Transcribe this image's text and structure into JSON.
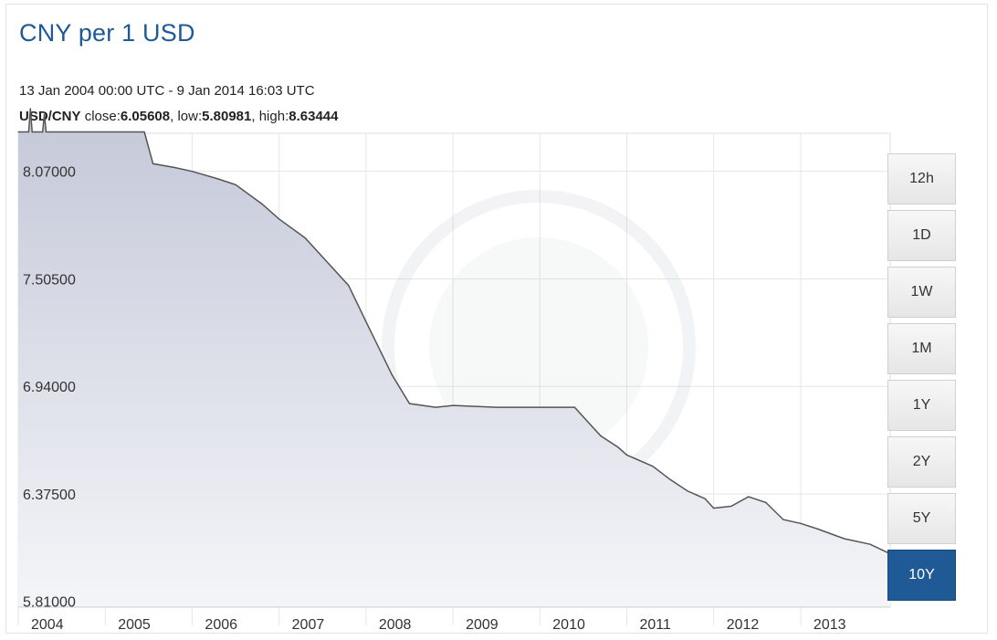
{
  "header": {
    "title": "CNY per 1 USD",
    "range_text": "13 Jan 2004 00:00 UTC - 9 Jan 2014 16:03 UTC",
    "pair": "USD/CNY",
    "close_label": "close:",
    "close_value": "6.05608",
    "low_label": "low:",
    "low_value": "5.80981",
    "high_label": "high:",
    "high_value": "8.63444"
  },
  "period_buttons": [
    {
      "label": "12h",
      "active": false
    },
    {
      "label": "1D",
      "active": false
    },
    {
      "label": "1W",
      "active": false
    },
    {
      "label": "1M",
      "active": false
    },
    {
      "label": "1Y",
      "active": false
    },
    {
      "label": "2Y",
      "active": false
    },
    {
      "label": "5Y",
      "active": false
    },
    {
      "label": "10Y",
      "active": true
    }
  ],
  "colors": {
    "line": "#555555",
    "area_top": "#c4c8d8",
    "area_bottom": "#f4f5f8",
    "grid": "#e6e6e6",
    "accent": "#1f5a96"
  },
  "chart_data": {
    "type": "area",
    "x_ticks": [
      "2004",
      "2005",
      "2006",
      "2007",
      "2008",
      "2009",
      "2010",
      "2011",
      "2012",
      "2013"
    ],
    "y_ticks": [
      "8.07000",
      "7.50500",
      "6.94000",
      "6.37500",
      "5.81000"
    ],
    "xlim": [
      2004.0,
      2014.03
    ],
    "ylim": [
      5.78,
      8.27
    ],
    "grid": true,
    "series": [
      {
        "points": [
          [
            2004.0,
            8.277
          ],
          [
            2004.12,
            8.277
          ],
          [
            2004.14,
            8.4
          ],
          [
            2004.16,
            8.277
          ],
          [
            2004.28,
            8.277
          ],
          [
            2004.3,
            8.37
          ],
          [
            2004.32,
            8.277
          ],
          [
            2005.0,
            8.277
          ],
          [
            2005.45,
            8.277
          ],
          [
            2005.55,
            8.11
          ],
          [
            2005.8,
            8.09
          ],
          [
            2006.0,
            8.07
          ],
          [
            2006.3,
            8.03
          ],
          [
            2006.5,
            8.0
          ],
          [
            2006.8,
            7.9
          ],
          [
            2007.0,
            7.82
          ],
          [
            2007.3,
            7.72
          ],
          [
            2007.6,
            7.57
          ],
          [
            2007.8,
            7.47
          ],
          [
            2008.0,
            7.28
          ],
          [
            2008.3,
            7.0
          ],
          [
            2008.5,
            6.85
          ],
          [
            2008.8,
            6.83
          ],
          [
            2009.0,
            6.84
          ],
          [
            2009.5,
            6.83
          ],
          [
            2010.0,
            6.83
          ],
          [
            2010.4,
            6.83
          ],
          [
            2010.5,
            6.78
          ],
          [
            2010.7,
            6.68
          ],
          [
            2010.9,
            6.62
          ],
          [
            2011.0,
            6.58
          ],
          [
            2011.3,
            6.52
          ],
          [
            2011.5,
            6.45
          ],
          [
            2011.7,
            6.39
          ],
          [
            2011.9,
            6.35
          ],
          [
            2012.0,
            6.3
          ],
          [
            2012.2,
            6.31
          ],
          [
            2012.4,
            6.36
          ],
          [
            2012.6,
            6.33
          ],
          [
            2012.8,
            6.24
          ],
          [
            2013.0,
            6.22
          ],
          [
            2013.2,
            6.19
          ],
          [
            2013.5,
            6.14
          ],
          [
            2013.8,
            6.11
          ],
          [
            2014.03,
            6.06
          ]
        ]
      }
    ]
  }
}
